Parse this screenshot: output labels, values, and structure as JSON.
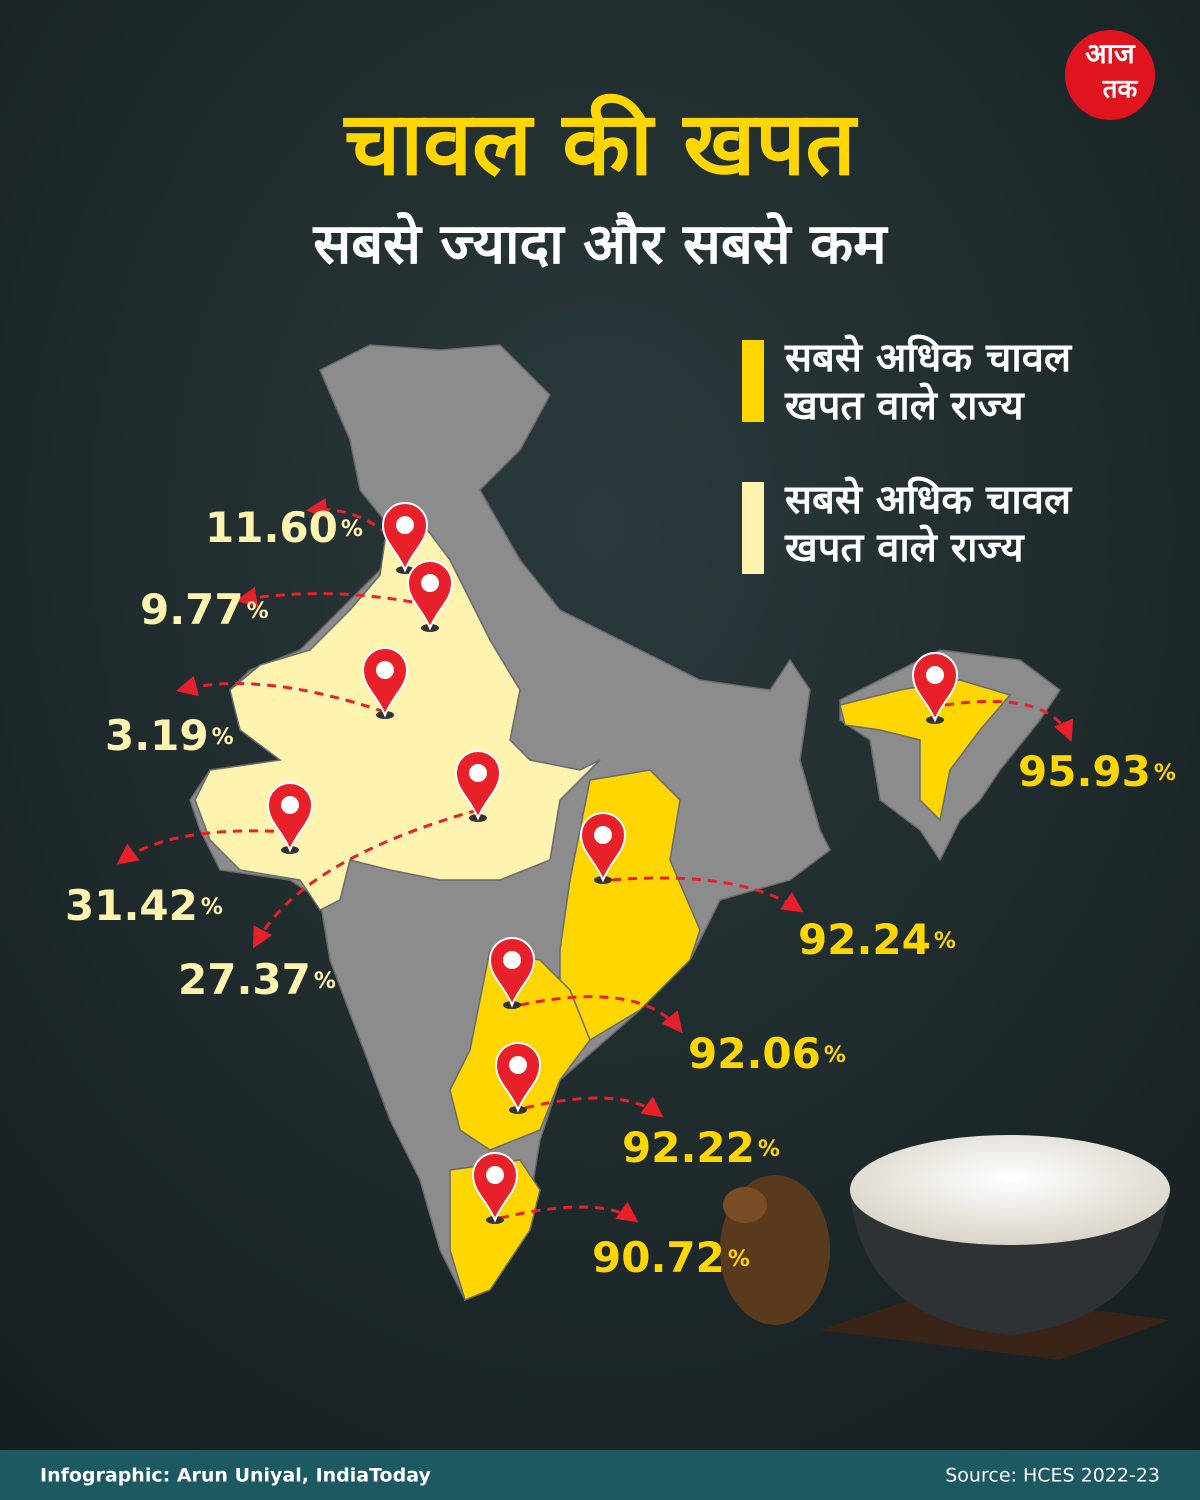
{
  "header": {
    "title": "चावल की खपत",
    "subtitle": "सबसे ज्यादा और सबसे कम"
  },
  "logo": {
    "lines": [
      "आज",
      "तक"
    ]
  },
  "legend": [
    {
      "lines": [
        "सबसे अधिक चावल",
        "खपत वाले राज्य"
      ]
    },
    {
      "lines": [
        "सबसे अधिक चावल",
        "खपत वाले राज्य"
      ]
    }
  ],
  "map_labels": [
    {
      "text": "11.60",
      "unit": "%"
    },
    {
      "text": "9.77",
      "unit": "%"
    },
    {
      "text": "3.19",
      "unit": "%"
    },
    {
      "text": "31.42",
      "unit": "%"
    },
    {
      "text": "27.37",
      "unit": "%"
    },
    {
      "text": "92.24",
      "unit": "%"
    },
    {
      "text": "92.06",
      "unit": "%"
    },
    {
      "text": "92.22",
      "unit": "%"
    },
    {
      "text": "90.72",
      "unit": "%"
    },
    {
      "text": "95.93",
      "unit": "%"
    }
  ],
  "footer": {
    "credit": "Infographic: Arun Uniyal, IndiaToday",
    "source": "Source: HCES 2022-23"
  }
}
